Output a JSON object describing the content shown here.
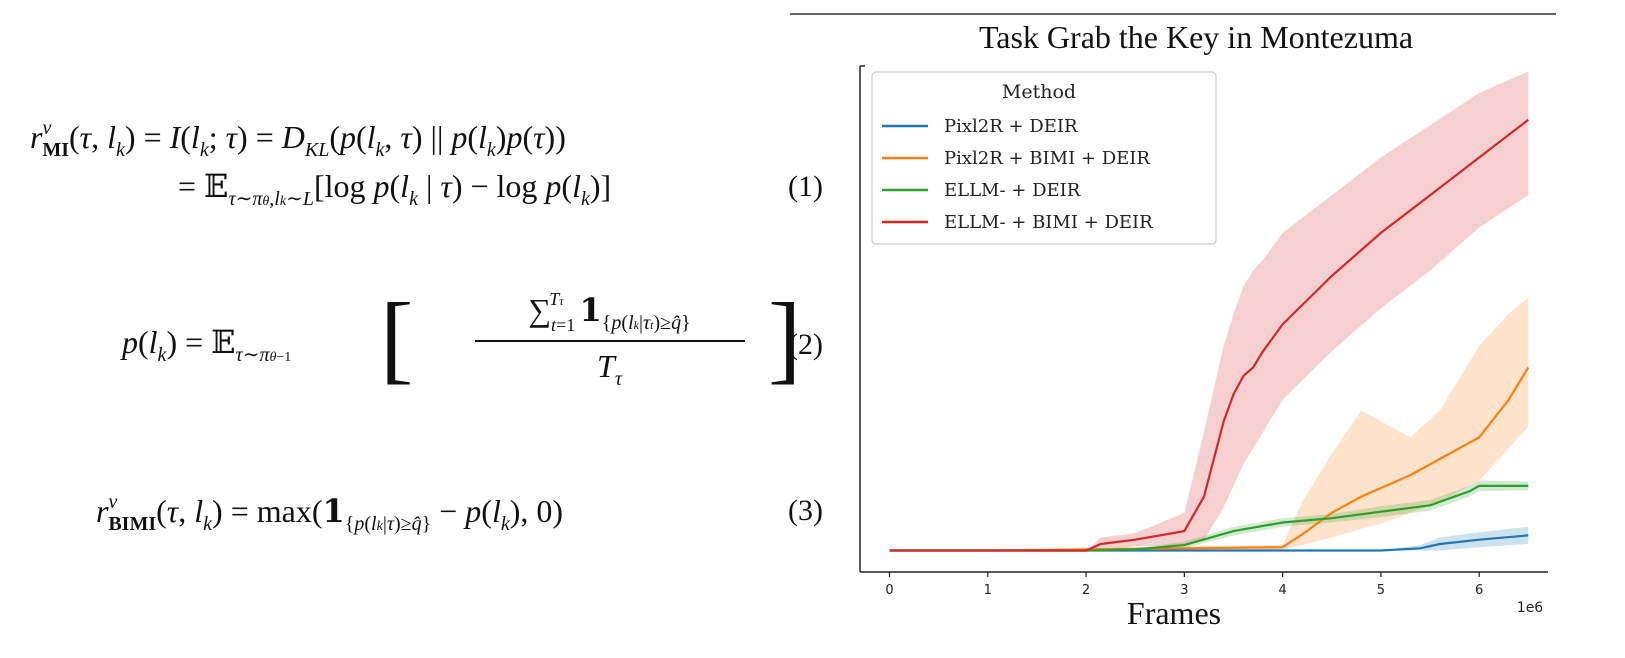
{
  "equations": [
    {
      "number": "(1)"
    },
    {
      "number": "(2)"
    },
    {
      "number": "(3)"
    }
  ],
  "chart_data": {
    "type": "line",
    "title": "Task Grab the Key in Montezuma",
    "xlabel": "Frames",
    "ylabel": "",
    "x_scale_label": "1e6",
    "xlim": [
      -0.3,
      6.7
    ],
    "ylim": [
      -0.2,
      4.5
    ],
    "x_ticks": [
      0,
      1,
      2,
      3,
      4,
      5,
      6
    ],
    "x_tick_labels": [
      "0",
      "1",
      "2",
      "3",
      "4",
      "5",
      "6"
    ],
    "legend": {
      "title": "Method",
      "position": "top-left"
    },
    "series": [
      {
        "name": "Pixl2R + DEIR",
        "color": "#1f77b4",
        "x": [
          0,
          1,
          2,
          3,
          4,
          5,
          5.4,
          5.6,
          6.0,
          6.5
        ],
        "y": [
          0,
          0,
          0,
          0,
          0,
          0,
          0.02,
          0.06,
          0.1,
          0.14
        ],
        "lower": [
          0,
          0,
          0,
          0,
          0,
          0,
          0,
          0.0,
          0.03,
          0.06
        ],
        "upper": [
          0,
          0,
          0,
          0,
          0,
          0,
          0.05,
          0.12,
          0.17,
          0.22
        ]
      },
      {
        "name": "Pixl2R + BIMI + DEIR",
        "color": "#ff7f0e",
        "x": [
          0,
          1,
          2,
          3,
          4,
          4.2,
          4.5,
          4.8,
          5.0,
          5.3,
          5.6,
          6.0,
          6.3,
          6.5
        ],
        "y": [
          0,
          0,
          0.01,
          0.02,
          0.03,
          0.15,
          0.35,
          0.5,
          0.58,
          0.7,
          0.85,
          1.05,
          1.4,
          1.7
        ],
        "lower": [
          0,
          0,
          0,
          0,
          0.01,
          0.05,
          0.12,
          0.2,
          0.25,
          0.35,
          0.45,
          0.65,
          0.95,
          1.15
        ],
        "upper": [
          0,
          0,
          0.02,
          0.04,
          0.05,
          0.45,
          0.9,
          1.3,
          1.2,
          1.05,
          1.3,
          1.9,
          2.2,
          2.35
        ]
      },
      {
        "name": "ELLM- + DEIR",
        "color": "#2ca02c",
        "x": [
          0,
          1,
          2,
          2.5,
          3,
          3.5,
          4,
          4.5,
          5,
          5.5,
          5.9,
          6.0,
          6.5
        ],
        "y": [
          0,
          0,
          0,
          0.01,
          0.05,
          0.18,
          0.26,
          0.3,
          0.36,
          0.42,
          0.55,
          0.6,
          0.6
        ],
        "lower": [
          0,
          0,
          0,
          0,
          0.02,
          0.14,
          0.22,
          0.26,
          0.31,
          0.37,
          0.5,
          0.55,
          0.56
        ],
        "upper": [
          0,
          0,
          0,
          0.02,
          0.08,
          0.22,
          0.3,
          0.34,
          0.41,
          0.47,
          0.6,
          0.65,
          0.64
        ]
      },
      {
        "name": "ELLM- + BIMI + DEIR",
        "color": "#d62728",
        "x": [
          0,
          1,
          2,
          2.15,
          2.5,
          3.0,
          3.2,
          3.4,
          3.5,
          3.6,
          3.7,
          3.8,
          4.0,
          4.5,
          5.0,
          5.5,
          6.0,
          6.5
        ],
        "y": [
          0,
          0,
          0,
          0.06,
          0.1,
          0.18,
          0.5,
          1.2,
          1.45,
          1.62,
          1.7,
          1.85,
          2.1,
          2.55,
          2.95,
          3.3,
          3.65,
          4.0
        ],
        "lower": [
          0,
          0,
          0,
          0.0,
          0.04,
          0.05,
          0.1,
          0.4,
          0.6,
          0.8,
          0.95,
          1.1,
          1.4,
          1.85,
          2.25,
          2.6,
          3.0,
          3.3
        ],
        "upper": [
          0,
          0,
          0,
          0.12,
          0.16,
          0.35,
          1.1,
          1.9,
          2.2,
          2.45,
          2.6,
          2.7,
          2.95,
          3.3,
          3.65,
          3.95,
          4.25,
          4.45
        ]
      }
    ]
  }
}
